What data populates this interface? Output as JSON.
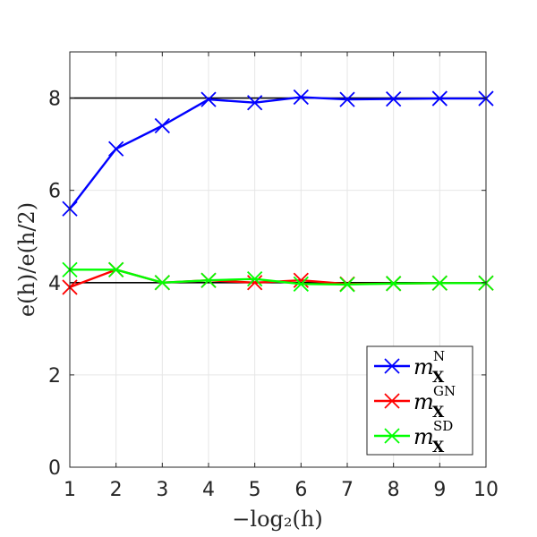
{
  "chart_data": {
    "type": "line",
    "title": "",
    "xlabel": "−log₂(h)",
    "ylabel": "e(h)/e(h/2)",
    "xlim": [
      1,
      10
    ],
    "ylim": [
      0,
      9
    ],
    "x_ticks": [
      "1",
      "2",
      "3",
      "4",
      "5",
      "6",
      "7",
      "8",
      "9",
      "10"
    ],
    "y_ticks": [
      "0",
      "2",
      "4",
      "6",
      "8"
    ],
    "grid": true,
    "reference_lines": [
      4,
      8
    ],
    "legend_position": "bottom-right",
    "series": [
      {
        "name": "m_X^N",
        "color": "#0000ff",
        "marker": "x",
        "x": [
          1,
          2,
          3,
          4,
          5,
          6,
          7,
          8,
          9,
          10
        ],
        "y": [
          5.6,
          6.9,
          7.4,
          7.97,
          7.9,
          8.02,
          7.97,
          7.98,
          7.99,
          7.99
        ]
      },
      {
        "name": "m_X^GN",
        "color": "#ff0000",
        "marker": "x",
        "x": [
          1,
          2,
          3,
          4,
          5,
          6,
          7,
          8,
          9,
          10
        ],
        "y": [
          3.9,
          4.28,
          4.0,
          4.05,
          4.0,
          4.05,
          3.97,
          3.98,
          3.99,
          3.99
        ]
      },
      {
        "name": "m_X^SD",
        "color": "#00ff00",
        "marker": "x",
        "x": [
          1,
          2,
          3,
          4,
          5,
          6,
          7,
          8,
          9,
          10
        ],
        "y": [
          4.28,
          4.28,
          4.0,
          4.05,
          4.08,
          3.97,
          3.96,
          3.98,
          3.99,
          3.99
        ]
      }
    ],
    "legend": [
      {
        "base": "m",
        "sub": "X",
        "sup": "N",
        "color": "#0000ff"
      },
      {
        "base": "m",
        "sub": "X",
        "sup": "GN",
        "color": "#ff0000"
      },
      {
        "base": "m",
        "sub": "X",
        "sup": "SD",
        "color": "#00ff00"
      }
    ]
  }
}
